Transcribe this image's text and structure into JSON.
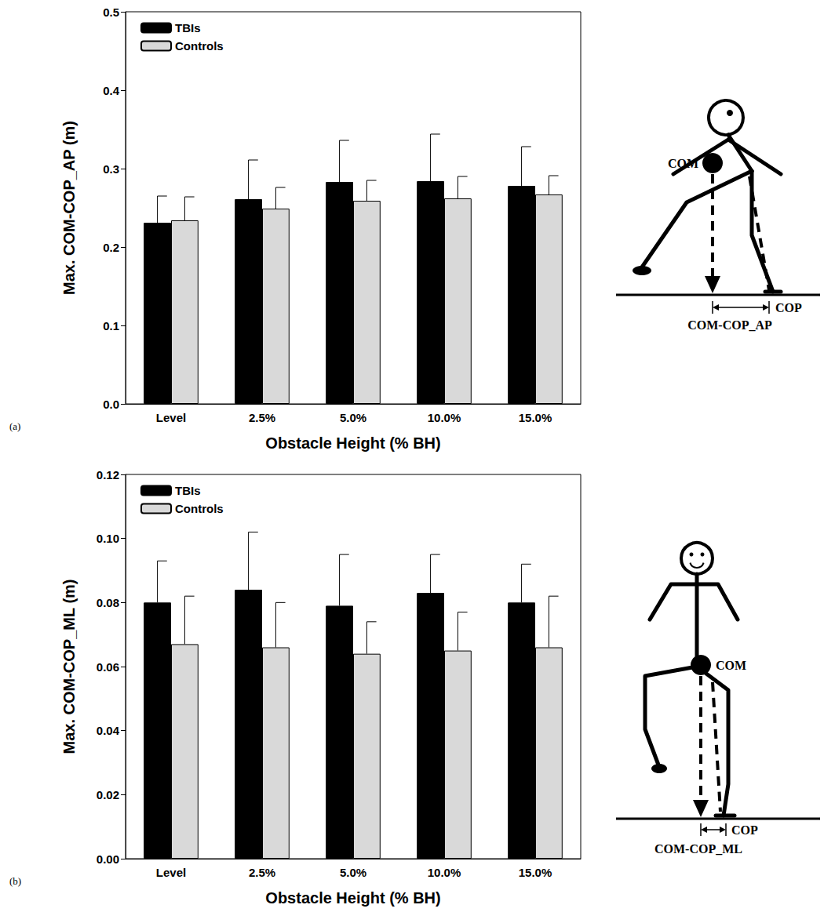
{
  "chart_data": [
    {
      "type": "bar",
      "label": "(a)",
      "y_label": "Max. COM-COP_AP (m)",
      "x_label": "Obstacle Height (% BH)",
      "categories": [
        "Level",
        "2.5%",
        "5.0%",
        "10.0%",
        "15.0%"
      ],
      "series": [
        {
          "name": "TBIs",
          "color": "#000000",
          "values": [
            0.231,
            0.261,
            0.283,
            0.284,
            0.278
          ],
          "errors": [
            0.034,
            0.05,
            0.053,
            0.06,
            0.05
          ]
        },
        {
          "name": "Controls",
          "color": "#d9d9d9",
          "values": [
            0.234,
            0.249,
            0.259,
            0.262,
            0.267
          ],
          "errors": [
            0.03,
            0.027,
            0.026,
            0.028,
            0.024
          ]
        }
      ],
      "ylim": [
        0,
        0.5
      ],
      "yticks": [
        {
          "value": 0,
          "label": "0.0"
        },
        0.1,
        0.2,
        0.3,
        0.4,
        0.5
      ],
      "legend": "upper left",
      "diagram": {
        "com": "COM",
        "cop": "COP",
        "distance": "COM-COP_AP"
      }
    },
    {
      "type": "bar",
      "label": "(b)",
      "y_label": "Max. COM-COP_ML (m)",
      "x_label": "Obstacle Height (% BH)",
      "categories": [
        "Level",
        "2.5%",
        "5.0%",
        "10.0%",
        "15.0%"
      ],
      "series": [
        {
          "name": "TBIs",
          "color": "#000000",
          "values": [
            0.08,
            0.084,
            0.079,
            0.083,
            0.08
          ],
          "errors": [
            0.013,
            0.018,
            0.016,
            0.012,
            0.012
          ]
        },
        {
          "name": "Controls",
          "color": "#d9d9d9",
          "values": [
            0.067,
            0.066,
            0.064,
            0.065,
            0.066
          ],
          "errors": [
            0.015,
            0.014,
            0.01,
            0.012,
            0.016
          ]
        }
      ],
      "ylim": [
        0,
        0.12
      ],
      "yticks": [
        {
          "value": 0,
          "label": "0.00"
        },
        {
          "value": 0.02,
          "label": "0.02"
        },
        {
          "value": 0.04,
          "label": "0.04"
        },
        {
          "value": 0.06,
          "label": "0.06"
        },
        {
          "value": 0.08,
          "label": "0.08"
        },
        {
          "value": 0.1,
          "label": "0.10"
        },
        {
          "value": 0.12,
          "label": "0.12"
        }
      ],
      "legend": "upper left",
      "diagram": {
        "com": "COM",
        "cop": "COP",
        "distance": "COM-COP_ML"
      }
    }
  ]
}
